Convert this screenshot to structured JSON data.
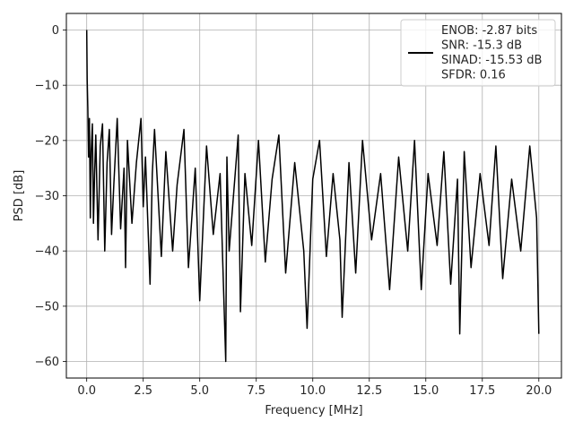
{
  "chart_data": {
    "type": "line",
    "title": "",
    "xlabel": "Frequency [MHz]",
    "ylabel": "PSD [dB]",
    "xlim": [
      -0.9,
      21.0
    ],
    "ylim": [
      -63.0,
      3.0
    ],
    "x_ticks": [
      0.0,
      2.5,
      5.0,
      7.5,
      10.0,
      12.5,
      15.0,
      17.5,
      20.0
    ],
    "x_tick_labels": [
      "0.0",
      "2.5",
      "5.0",
      "7.5",
      "10.0",
      "12.5",
      "15.0",
      "17.5",
      "20.0"
    ],
    "y_ticks": [
      0,
      -10,
      -20,
      -30,
      -40,
      -50,
      -60
    ],
    "y_tick_labels": [
      "0",
      "−10",
      "−20",
      "−30",
      "−40",
      "−50",
      "−60"
    ],
    "grid": true,
    "legend_position": "top-right",
    "legend_entries": [
      "ENOB: -2.87 bits",
      "SNR: -15.3 dB",
      "SINAD: -15.53 dB",
      "SFDR: 0.16"
    ],
    "line_color": "#000000",
    "series": [
      {
        "x": [
          0.0,
          0.02,
          0.05,
          0.08,
          0.12,
          0.16,
          0.2,
          0.25,
          0.3,
          0.35,
          0.4,
          0.5,
          0.6,
          0.7,
          0.8,
          0.9,
          1.0,
          1.1,
          1.2,
          1.35,
          1.5,
          1.65,
          1.72,
          1.8,
          2.0,
          2.2,
          2.4,
          2.5,
          2.6,
          2.8,
          2.9,
          3.0,
          3.3,
          3.5,
          3.8,
          4.0,
          4.3,
          4.5,
          4.8,
          5.0,
          5.3,
          5.6,
          5.9,
          6.15,
          6.2,
          6.3,
          6.7,
          6.8,
          7.0,
          7.3,
          7.6,
          7.9,
          8.2,
          8.5,
          8.8,
          9.2,
          9.6,
          9.75,
          10.0,
          10.3,
          10.6,
          10.9,
          11.2,
          11.3,
          11.6,
          11.9,
          12.2,
          12.6,
          13.0,
          13.4,
          13.8,
          14.2,
          14.5,
          14.8,
          15.1,
          15.5,
          15.8,
          16.1,
          16.4,
          16.5,
          16.7,
          17.0,
          17.4,
          17.8,
          18.1,
          18.4,
          18.8,
          19.2,
          19.6,
          19.9,
          20.0
        ],
        "y": [
          0.0,
          -9.0,
          -14.0,
          -23.0,
          -16.0,
          -34.0,
          -22.0,
          -17.0,
          -35.0,
          -26.0,
          -19.0,
          -38.0,
          -21.0,
          -17.0,
          -40.0,
          -24.0,
          -18.0,
          -37.0,
          -28.0,
          -16.0,
          -36.0,
          -25.0,
          -43.0,
          -20.0,
          -35.0,
          -24.0,
          -16.0,
          -32.0,
          -23.0,
          -46.0,
          -26.0,
          -18.0,
          -41.0,
          -22.0,
          -40.0,
          -28.0,
          -18.0,
          -43.0,
          -25.0,
          -49.0,
          -21.0,
          -37.0,
          -26.0,
          -60.0,
          -23.0,
          -40.0,
          -19.0,
          -51.0,
          -26.0,
          -39.0,
          -20.0,
          -42.0,
          -27.0,
          -19.0,
          -44.0,
          -24.0,
          -40.0,
          -54.0,
          -27.0,
          -20.0,
          -41.0,
          -26.0,
          -38.0,
          -52.0,
          -24.0,
          -44.0,
          -20.0,
          -38.0,
          -26.0,
          -47.0,
          -23.0,
          -40.0,
          -20.0,
          -47.0,
          -26.0,
          -39.0,
          -22.0,
          -46.0,
          -27.0,
          -55.0,
          -22.0,
          -43.0,
          -26.0,
          -39.0,
          -21.0,
          -45.0,
          -27.0,
          -40.0,
          -21.0,
          -34.0,
          -55.0
        ]
      }
    ]
  }
}
